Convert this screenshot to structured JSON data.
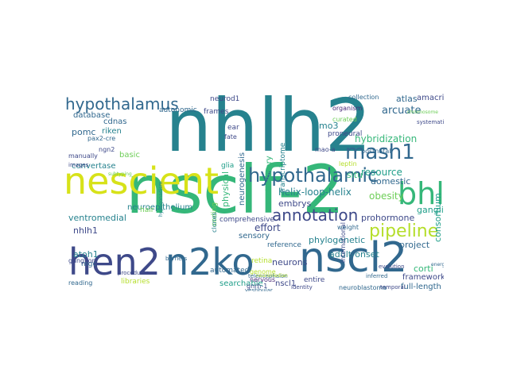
{
  "word_cloud": {
    "background": "#ffffff",
    "palette": [
      "#440154",
      "#482878",
      "#3e4989",
      "#31688e",
      "#26828e",
      "#1f9e89",
      "#35b779",
      "#6ece58",
      "#b5de2b",
      "#fde725"
    ],
    "words": [
      {
        "text": "nsclf-2",
        "color": "#35b779"
      },
      {
        "text": "nhlh2",
        "color": "#26828e"
      },
      {
        "text": "nescient",
        "color": "#d7e219"
      },
      {
        "text": "nscl2",
        "color": "#31688e"
      },
      {
        "text": "hen2",
        "color": "#3e4989"
      },
      {
        "text": "n2ko",
        "color": "#31688e"
      },
      {
        "text": "bhlh",
        "color": "#35b779"
      },
      {
        "text": "hypothalamic",
        "color": "#31688e"
      },
      {
        "text": "mash1",
        "color": "#31688e"
      },
      {
        "text": "hypothalamus",
        "color": "#31688e"
      },
      {
        "text": "pipeline",
        "color": "#b5de2b"
      },
      {
        "text": "annotation",
        "color": "#3e4989"
      },
      {
        "text": "arcuate",
        "color": "#31688e"
      },
      {
        "text": "lmo3",
        "color": "#26828e"
      },
      {
        "text": "atlas",
        "color": "#31688e"
      },
      {
        "text": "amacrine",
        "color": "#3e4989"
      },
      {
        "text": "hybridization",
        "color": "#35b779"
      },
      {
        "text": "resource",
        "color": "#1f9e89"
      },
      {
        "text": "consortium",
        "color": "#1f9e89"
      },
      {
        "text": "domestic",
        "color": "#31688e"
      },
      {
        "text": "obesity",
        "color": "#6ece58"
      },
      {
        "text": "situ",
        "color": "#35b779"
      },
      {
        "text": "helix-loop-helix",
        "color": "#26828e"
      },
      {
        "text": "embrys",
        "color": "#3e4989"
      },
      {
        "text": "prohormone",
        "color": "#3e4989"
      },
      {
        "text": "ganglia",
        "color": "#1f9e89"
      },
      {
        "text": "corti",
        "color": "#35b779"
      },
      {
        "text": "framework",
        "color": "#3e4989"
      },
      {
        "text": "full-length",
        "color": "#31688e"
      },
      {
        "text": "project",
        "color": "#31688e"
      },
      {
        "text": "adult-onset",
        "color": "#26828e"
      },
      {
        "text": "phylogenetic",
        "color": "#26828e"
      },
      {
        "text": "neurons",
        "color": "#3e4989"
      },
      {
        "text": "nscl1",
        "color": "#3e4989"
      },
      {
        "text": "entire",
        "color": "#3e4989"
      },
      {
        "text": "searchable",
        "color": "#1f9e89"
      },
      {
        "text": "libraries",
        "color": "#b5de2b"
      },
      {
        "text": "reading",
        "color": "#31688e"
      },
      {
        "text": "ventromedial",
        "color": "#26828e"
      },
      {
        "text": "nhlh1",
        "color": "#3e4989"
      },
      {
        "text": "atoh1",
        "color": "#26828e"
      },
      {
        "text": "mgc",
        "color": "#31688e"
      },
      {
        "text": "ganglion",
        "color": "#3e4989"
      },
      {
        "text": "pomc",
        "color": "#31688e"
      },
      {
        "text": "cdnas",
        "color": "#31688e"
      },
      {
        "text": "database",
        "color": "#31688e"
      },
      {
        "text": "convertase",
        "color": "#26828e"
      },
      {
        "text": "basic",
        "color": "#6ece58"
      },
      {
        "text": "riken",
        "color": "#26828e"
      },
      {
        "text": "neuroepithelium",
        "color": "#26828e"
      },
      {
        "text": "effort",
        "color": "#3e4989"
      },
      {
        "text": "sensory",
        "color": "#31688e"
      },
      {
        "text": "comprehensive",
        "color": "#3e4989"
      },
      {
        "text": "reference",
        "color": "#31688e"
      },
      {
        "text": "retina",
        "color": "#b5de2b"
      },
      {
        "text": "automated",
        "color": "#31688e"
      },
      {
        "text": "neurogenesis",
        "color": "#31688e"
      },
      {
        "text": "evolutionary",
        "color": "#35b779"
      },
      {
        "text": "transcriptome",
        "color": "#26828e"
      },
      {
        "text": "autonomic",
        "color": "#31688e"
      },
      {
        "text": "physical",
        "color": "#35b779"
      },
      {
        "text": "coding",
        "color": "#6ece58"
      },
      {
        "text": "hair",
        "color": "#6ece58"
      },
      {
        "text": "frames",
        "color": "#3e4989"
      },
      {
        "text": "neurod1",
        "color": "#3e4989"
      },
      {
        "text": "glia",
        "color": "#1f9e89"
      },
      {
        "text": "ear",
        "color": "#3e4989"
      },
      {
        "text": "fate",
        "color": "#3e4989"
      },
      {
        "text": "clones",
        "color": "#26828e"
      },
      {
        "text": "organism",
        "color": "#482878"
      },
      {
        "text": "collection",
        "color": "#31688e"
      },
      {
        "text": "proneural",
        "color": "#3e4989"
      },
      {
        "text": "postnatal",
        "color": "#31688e"
      },
      {
        "text": "curated",
        "color": "#6ece58"
      },
      {
        "text": "leptin",
        "color": "#b5de2b"
      },
      {
        "text": "mao-a",
        "color": "#3e4989"
      },
      {
        "text": "international",
        "color": "#3e4989"
      },
      {
        "text": "nervous",
        "color": "#482878"
      },
      {
        "text": "genome",
        "color": "#b5de2b"
      },
      {
        "text": "gnrh-1",
        "color": "#3e4989"
      },
      {
        "text": "b-hlh",
        "color": "#3e4989"
      },
      {
        "text": "neuroblastoma",
        "color": "#31688e"
      },
      {
        "text": "telencephalon",
        "color": "#31688e"
      },
      {
        "text": "vestibular",
        "color": "#31688e"
      },
      {
        "text": "identity",
        "color": "#3e4989"
      },
      {
        "text": "temporal",
        "color": "#3e4989"
      },
      {
        "text": "weight",
        "color": "#31688e"
      },
      {
        "text": "inferred",
        "color": "#31688e"
      },
      {
        "text": "evolution",
        "color": "#3e4989"
      },
      {
        "text": "pax2-cre",
        "color": "#31688e"
      },
      {
        "text": "ngn2",
        "color": "#3e4989"
      },
      {
        "text": "manually",
        "color": "#3e4989"
      },
      {
        "text": "images",
        "color": "#3e4989"
      },
      {
        "text": "mammalian",
        "color": "#31688e"
      },
      {
        "text": "ontology",
        "color": "#6ece58"
      },
      {
        "text": "complementary",
        "color": "#6ece58"
      },
      {
        "text": "procedures",
        "color": "#3e4989"
      },
      {
        "text": "barriers",
        "color": "#31688e"
      },
      {
        "text": "systematic",
        "color": "#3e4989"
      },
      {
        "text": "energy",
        "color": "#31688e"
      },
      {
        "text": "chromosome",
        "color": "#6ece58"
      },
      {
        "text": "hypogonadism",
        "color": "#26828e"
      },
      {
        "text": "neuromedian",
        "color": "#b5de2b"
      },
      {
        "text": "subtyping",
        "color": "#6ece58"
      }
    ]
  }
}
